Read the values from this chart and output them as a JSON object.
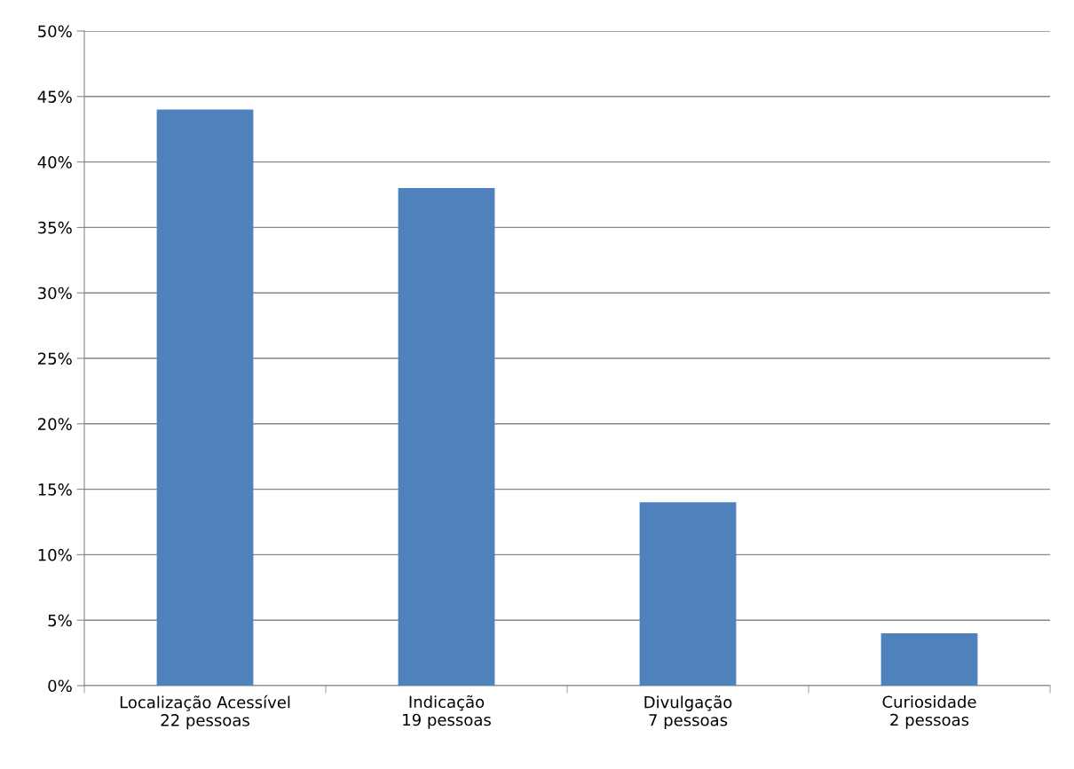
{
  "chart_data": {
    "type": "bar",
    "categories": [
      "Localização Acessível\n22 pessoas",
      "Indicação\n19 pessoas",
      "Divulgação\n7 pessoas",
      "Curiosidade\n2 pessoas"
    ],
    "values": [
      44,
      38,
      14,
      4
    ],
    "color": "#4f81bd",
    "ylim": [
      0,
      50
    ],
    "yticks": [
      {
        "value": 0,
        "label": "0%"
      },
      {
        "value": 5,
        "label": "5%"
      },
      {
        "value": 10,
        "label": "10%"
      },
      {
        "value": 15,
        "label": "15%"
      },
      {
        "value": 20,
        "label": "20%"
      },
      {
        "value": 25,
        "label": "25%"
      },
      {
        "value": 30,
        "label": "30%"
      },
      {
        "value": 35,
        "label": "35%"
      },
      {
        "value": 40,
        "label": "40%"
      },
      {
        "value": 45,
        "label": "45%"
      },
      {
        "value": 50,
        "label": "50%"
      }
    ],
    "grid": "y",
    "legend": false
  }
}
